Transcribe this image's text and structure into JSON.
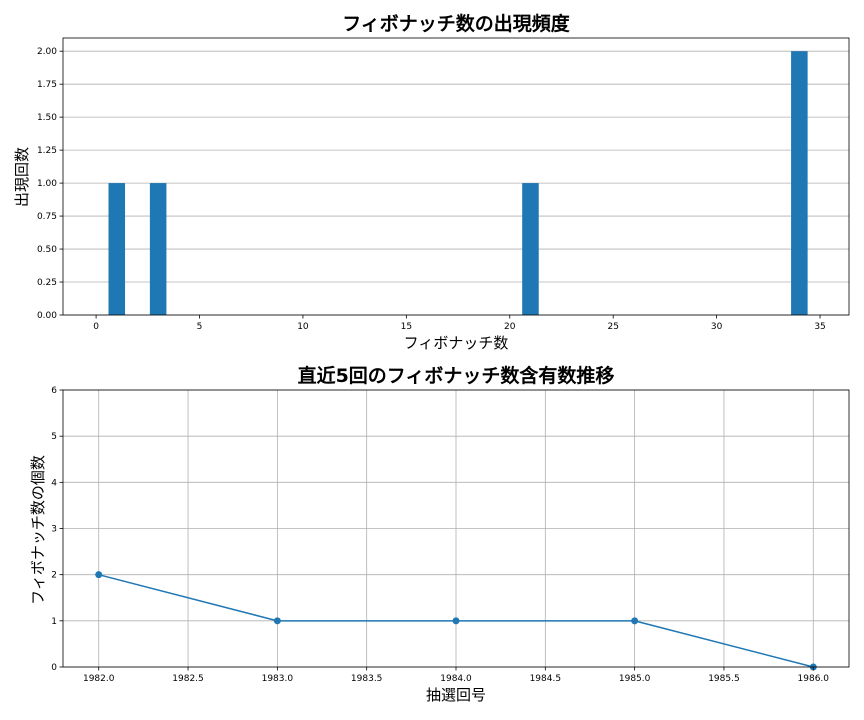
{
  "chart_data": [
    {
      "type": "bar",
      "title": "フィボナッチ数の出現頻度",
      "xlabel": "フィボナッチ数",
      "ylabel": "出現回数",
      "x": [
        1,
        3,
        21,
        34
      ],
      "values": [
        1,
        1,
        1,
        2
      ],
      "xlim": [
        -1.6,
        36.4
      ],
      "ylim": [
        0,
        2.1
      ],
      "xticks": [
        0,
        5,
        10,
        15,
        20,
        25,
        30,
        35
      ],
      "xtick_labels": [
        "0",
        "5",
        "10",
        "15",
        "20",
        "25",
        "30",
        "35"
      ],
      "yticks": [
        0,
        0.25,
        0.5,
        0.75,
        1.0,
        1.25,
        1.5,
        1.75,
        2.0
      ],
      "ytick_labels": [
        "0.00",
        "0.25",
        "0.50",
        "0.75",
        "1.00",
        "1.25",
        "1.50",
        "1.75",
        "2.00"
      ],
      "bar_width": 0.8,
      "color": "#1f77b4",
      "grid": "y"
    },
    {
      "type": "line",
      "title": "直近5回のフィボナッチ数含有数推移",
      "xlabel": "抽選回号",
      "ylabel": "フィボナッチ数の個数",
      "x": [
        1982,
        1983,
        1984,
        1985,
        1986
      ],
      "values": [
        2,
        1,
        1,
        1,
        0
      ],
      "xlim": [
        1981.8,
        1986.2
      ],
      "ylim": [
        0,
        6
      ],
      "xticks": [
        1982.0,
        1982.5,
        1983.0,
        1983.5,
        1984.0,
        1984.5,
        1985.0,
        1985.5,
        1986.0
      ],
      "xtick_labels": [
        "1982.0",
        "1982.5",
        "1983.0",
        "1983.5",
        "1984.0",
        "1984.5",
        "1985.0",
        "1985.5",
        "1986.0"
      ],
      "yticks": [
        0,
        1,
        2,
        3,
        4,
        5,
        6
      ],
      "ytick_labels": [
        "0",
        "1",
        "2",
        "3",
        "4",
        "5",
        "6"
      ],
      "marker": "circle",
      "color": "#1f77b4",
      "grid": "both"
    }
  ]
}
